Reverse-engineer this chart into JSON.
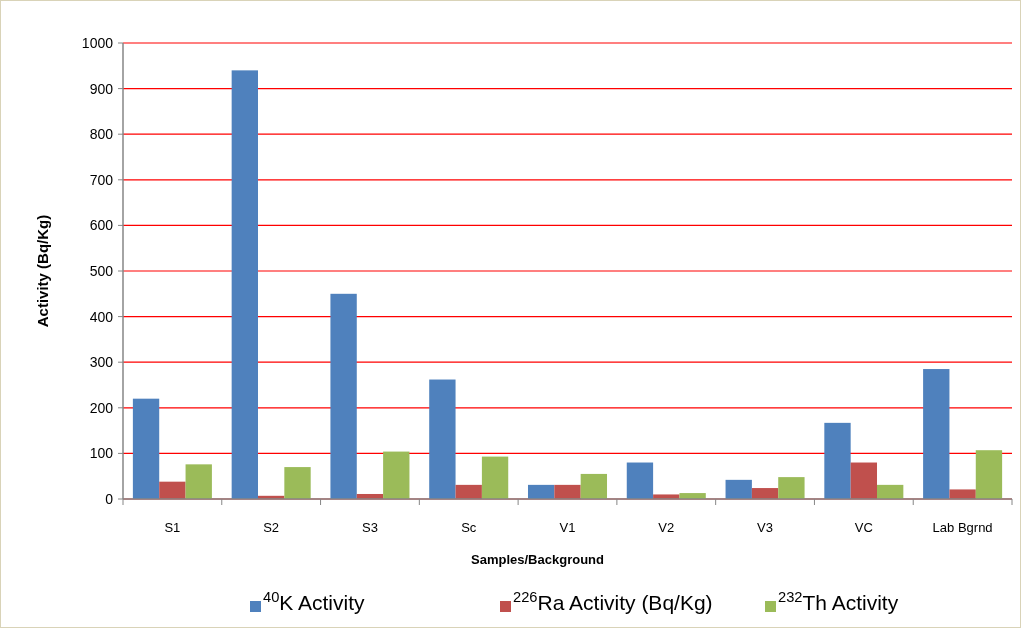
{
  "chart_data": {
    "type": "bar",
    "xlabel": "Samples/Background",
    "ylabel": "Activity (Bq/Kg)",
    "categories": [
      "S1",
      "S2",
      "S3",
      "Sc",
      "V1",
      "V2",
      "V3",
      "VC",
      "Lab Bgrnd"
    ],
    "series": [
      {
        "name": "$^{40}$K Activity",
        "color": "#4f81bd",
        "values": [
          220,
          940,
          450,
          262,
          31,
          80,
          42,
          167,
          285
        ]
      },
      {
        "name": "$^{226}$Ra Activity (Bq/Kg)",
        "color": "#c0504d",
        "values": [
          38,
          7,
          11,
          31,
          31,
          10,
          24,
          80,
          21
        ]
      },
      {
        "name": "$^{232}$Th Activity",
        "color": "#9bbb59",
        "values": [
          76,
          70,
          104,
          93,
          55,
          13,
          48,
          31,
          107
        ]
      }
    ],
    "ylim": [
      0,
      1000
    ],
    "yticks": [
      0,
      100,
      200,
      300,
      400,
      500,
      600,
      700,
      800,
      900,
      1000
    ],
    "grid": "y",
    "legend": "bottom"
  }
}
